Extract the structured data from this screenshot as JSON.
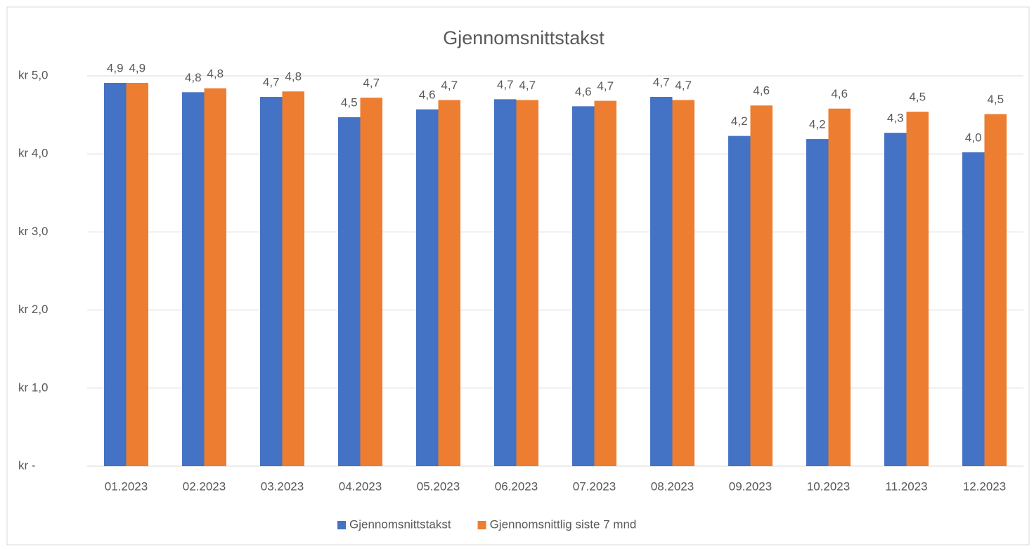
{
  "chart_data": {
    "type": "bar",
    "title": "Gjennomsnittstakst",
    "categories": [
      "01.2023",
      "02.2023",
      "03.2023",
      "04.2023",
      "05.2023",
      "06.2023",
      "07.2023",
      "08.2023",
      "09.2023",
      "10.2023",
      "11.2023",
      "12.2023"
    ],
    "series": [
      {
        "name": "Gjennomsnittstakst",
        "color": "#4472c4",
        "values": [
          4.91,
          4.79,
          4.73,
          4.47,
          4.57,
          4.7,
          4.61,
          4.73,
          4.23,
          4.19,
          4.27,
          4.02
        ],
        "value_labels": [
          "4,9",
          "4,8",
          "4,7",
          "4,5",
          "4,6",
          "4,7",
          "4,6",
          "4,7",
          "4,2",
          "4,2",
          "4,3",
          "4,0"
        ]
      },
      {
        "name": "Gjennomsnittlig siste 7 mnd",
        "color": "#ed7d31",
        "values": [
          4.91,
          4.84,
          4.8,
          4.72,
          4.69,
          4.69,
          4.68,
          4.69,
          4.62,
          4.58,
          4.54,
          4.51
        ],
        "value_labels": [
          "4,9",
          "4,8",
          "4,8",
          "4,7",
          "4,7",
          "4,7",
          "4,7",
          "4,7",
          "4,6",
          "4,6",
          "4,5",
          "4,5"
        ]
      }
    ],
    "ylim": [
      0,
      5
    ],
    "yticks": [
      {
        "value": 0,
        "label": "kr -"
      },
      {
        "value": 1,
        "label": "kr 1,0"
      },
      {
        "value": 2,
        "label": "kr 2,0"
      },
      {
        "value": 3,
        "label": "kr 3,0"
      },
      {
        "value": 4,
        "label": "kr 4,0"
      },
      {
        "value": 5,
        "label": "kr 5,0"
      }
    ],
    "grid": true,
    "legend": "bottom"
  }
}
